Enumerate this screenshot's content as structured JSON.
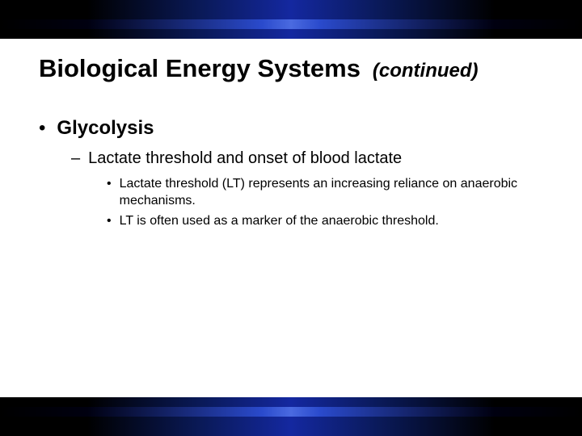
{
  "colors": {
    "text": "#000000",
    "background": "#ffffff",
    "band_dark": "#000000",
    "band_mid": "#1428a0",
    "band_light": "#4a6ae0"
  },
  "typography": {
    "title_size_pt": 31,
    "continued_size_pt": 24,
    "level1_size_pt": 24,
    "level2_size_pt": 20,
    "level3_size_pt": 16,
    "font_family": "Arial"
  },
  "title": {
    "main": "Biological Energy Systems",
    "continued": "(continued)"
  },
  "bullets": {
    "level1": {
      "marker": "•",
      "text": "Glycolysis"
    },
    "level2": {
      "marker": "–",
      "text": "Lactate threshold and onset of blood lactate"
    },
    "level3": [
      {
        "marker": "•",
        "text": "Lactate threshold (LT) represents an increasing reliance on anaerobic mechanisms."
      },
      {
        "marker": "•",
        "text": "LT is often used as a marker of the anaerobic threshold."
      }
    ]
  }
}
